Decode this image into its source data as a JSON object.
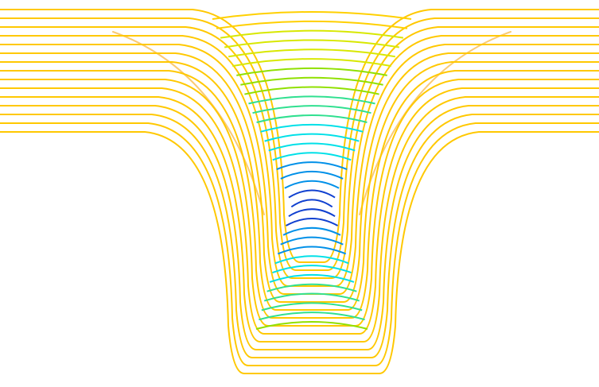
{
  "palette": {
    "outer": "#ffc800",
    "dense": "#f5a000",
    "dome": [
      "#ffd000",
      "#d8e800",
      "#90e000",
      "#30e090",
      "#00e0e8",
      "#0090e8",
      "#1040d0"
    ]
  }
}
